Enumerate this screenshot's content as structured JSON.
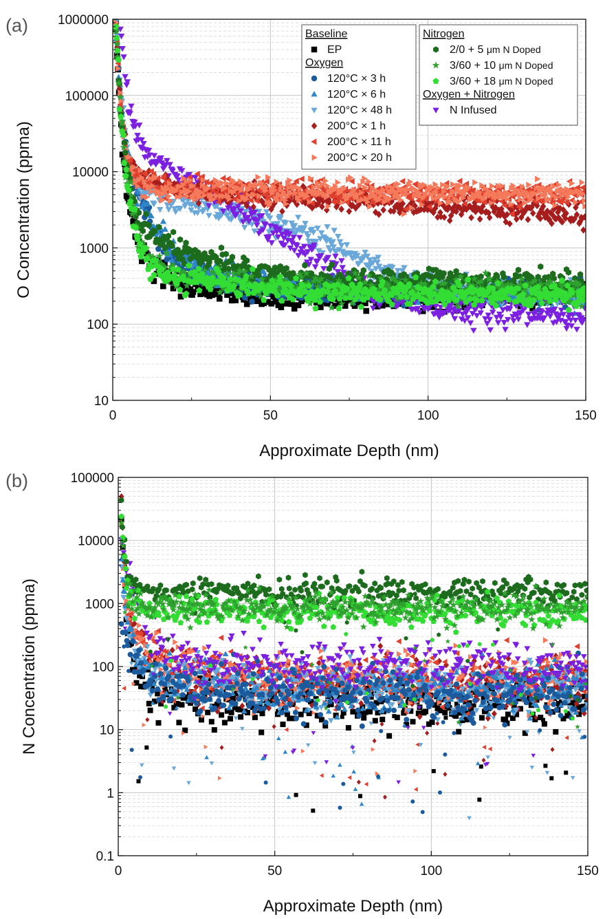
{
  "chart_data": [
    {
      "type": "scatter",
      "panel_label": "(a)",
      "title": "",
      "xlabel": "Approximate Depth (nm)",
      "ylabel": "O Concentration (ppma)",
      "xlim": [
        0,
        150
      ],
      "ylim": [
        10,
        1000000
      ],
      "yscale": "log",
      "x_ticks": [
        "0",
        "50",
        "100",
        "150"
      ],
      "y_ticks": [
        "10",
        "100",
        "1000",
        "10000",
        "100000",
        "1000000"
      ],
      "grid": true,
      "legend_placement": "top-right",
      "legend_groups": [
        {
          "heading": "Baseline",
          "entries": [
            {
              "label": "EP",
              "series": "ep"
            }
          ]
        },
        {
          "heading": "Oxygen",
          "entries": [
            {
              "label": "120°C × 3 h",
              "series": "o120_3"
            },
            {
              "label": "120°C × 6 h",
              "series": "o120_6"
            },
            {
              "label": "120°C × 48 h",
              "series": "o120_48"
            },
            {
              "label": "200°C × 1 h",
              "series": "o200_1"
            },
            {
              "label": "200°C × 11 h",
              "series": "o200_11"
            },
            {
              "label": "200°C × 20 h",
              "series": "o200_20"
            }
          ]
        },
        {
          "heading": "Nitrogen",
          "entries": [
            {
              "label": "2/0 + 5 μm N Doped",
              "series": "n2_0_5",
              "label_parts": [
                "2/0 + 5 ",
                "μm N Doped"
              ]
            },
            {
              "label": "3/60 + 10 μm N Doped",
              "series": "n3_60_10",
              "label_parts": [
                "3/60 + 10 ",
                "μm N Doped"
              ]
            },
            {
              "label": "3/60 + 18 μm N Doped",
              "series": "n3_60_18",
              "label_parts": [
                "3/60 + 18 ",
                "μm N Doped"
              ]
            }
          ]
        },
        {
          "heading": "Oxygen + Nitrogen",
          "entries": [
            {
              "label": "N Infused",
              "series": "ninf"
            }
          ]
        }
      ],
      "series": [
        {
          "key": "ep",
          "name": "EP",
          "marker": "square",
          "color": "#000000",
          "x": [
            1,
            2,
            3,
            5,
            8,
            12,
            18,
            25,
            35,
            50,
            70,
            90,
            110,
            130,
            150
          ],
          "y": [
            800000,
            100000,
            20000,
            4000,
            1200,
            600,
            400,
            300,
            260,
            230,
            220,
            220,
            230,
            240,
            250
          ]
        },
        {
          "key": "o120_3",
          "name": "120°C × 3 h",
          "marker": "circle",
          "color": "#1b5a9c",
          "x": [
            1,
            2,
            3,
            5,
            8,
            10,
            14,
            18,
            25,
            35,
            50,
            70,
            90,
            110,
            130,
            150
          ],
          "y": [
            900000,
            150000,
            40000,
            12000,
            5000,
            3500,
            1500,
            800,
            500,
            400,
            320,
            280,
            270,
            260,
            250,
            250
          ]
        },
        {
          "key": "o120_6",
          "name": "120°C × 6 h",
          "marker": "triangle-up",
          "color": "#2e86c9",
          "x": [
            1,
            2,
            3,
            5,
            8,
            10,
            14,
            18,
            25,
            35,
            50,
            70,
            90,
            110,
            130,
            150
          ],
          "y": [
            900000,
            160000,
            45000,
            13000,
            5500,
            4000,
            2000,
            1000,
            600,
            420,
            330,
            290,
            270,
            260,
            250,
            250
          ]
        },
        {
          "key": "o120_48",
          "name": "120°C × 48 h",
          "marker": "triangle-down",
          "color": "#6aa8da",
          "x": [
            1,
            2,
            3,
            5,
            8,
            12,
            20,
            30,
            40,
            50,
            60,
            70,
            80,
            90,
            100,
            110,
            130,
            150
          ],
          "y": [
            900000,
            200000,
            60000,
            15000,
            7000,
            5000,
            4200,
            3500,
            2800,
            2200,
            1600,
            1100,
            650,
            430,
            330,
            290,
            260,
            250
          ]
        },
        {
          "key": "o200_1",
          "name": "200°C × 1 h",
          "marker": "diamond",
          "color": "#a51d1d",
          "x": [
            1,
            2,
            3,
            5,
            8,
            15,
            30,
            50,
            70,
            90,
            110,
            130,
            150
          ],
          "y": [
            900000,
            150000,
            40000,
            12000,
            8500,
            6500,
            5500,
            4800,
            4200,
            3800,
            3400,
            3000,
            2600
          ]
        },
        {
          "key": "o200_11",
          "name": "200°C × 11 h",
          "marker": "triangle-left",
          "color": "#e0402e",
          "x": [
            1,
            2,
            3,
            5,
            8,
            15,
            30,
            50,
            70,
            90,
            110,
            130,
            150
          ],
          "y": [
            900000,
            150000,
            40000,
            12000,
            8000,
            6500,
            5800,
            5500,
            5300,
            5200,
            5200,
            5200,
            5100
          ]
        },
        {
          "key": "o200_20",
          "name": "200°C × 20 h",
          "marker": "triangle-right",
          "color": "#f47a5b",
          "x": [
            1,
            2,
            3,
            5,
            8,
            15,
            30,
            50,
            70,
            90,
            110,
            130,
            150
          ],
          "y": [
            900000,
            150000,
            40000,
            12000,
            7000,
            6000,
            5800,
            5600,
            5500,
            5400,
            5300,
            5200,
            5000
          ]
        },
        {
          "key": "n2_0_5",
          "name": "2/0 + 5 μm N Doped",
          "marker": "hexagon",
          "color": "#1d6b1d",
          "x": [
            1,
            2,
            3,
            5,
            8,
            12,
            20,
            30,
            45,
            60,
            80,
            100,
            120,
            150
          ],
          "y": [
            900000,
            150000,
            40000,
            8000,
            2500,
            1500,
            1000,
            700,
            500,
            420,
            380,
            370,
            350,
            330
          ]
        },
        {
          "key": "n3_60_10",
          "name": "3/60 + 10 μm N Doped",
          "marker": "star",
          "color": "#2ea12e",
          "x": [
            1,
            2,
            3,
            5,
            8,
            12,
            20,
            30,
            45,
            60,
            80,
            100,
            120,
            150
          ],
          "y": [
            800000,
            120000,
            30000,
            6000,
            1500,
            700,
            450,
            380,
            330,
            300,
            290,
            280,
            275,
            270
          ]
        },
        {
          "key": "n3_60_18",
          "name": "3/60 + 18 μm N Doped",
          "marker": "pentagon",
          "color": "#33dd33",
          "x": [
            1,
            2,
            3,
            5,
            8,
            12,
            20,
            30,
            45,
            60,
            80,
            100,
            120,
            150
          ],
          "y": [
            800000,
            120000,
            30000,
            5000,
            1200,
            600,
            420,
            350,
            300,
            270,
            260,
            250,
            240,
            240
          ]
        },
        {
          "key": "ninf",
          "name": "N Infused",
          "marker": "triangle-down",
          "color": "#7b1fe0",
          "x": [
            2,
            3,
            5,
            8,
            12,
            18,
            25,
            30,
            40,
            50,
            60,
            70,
            80,
            90,
            100,
            110,
            120,
            130,
            140,
            150
          ],
          "y": [
            1000000,
            500000,
            80000,
            28000,
            15000,
            11000,
            7500,
            5500,
            3200,
            1800,
            1000,
            500,
            300,
            220,
            170,
            150,
            140,
            140,
            130,
            120
          ]
        }
      ]
    },
    {
      "type": "scatter",
      "panel_label": "(b)",
      "title": "",
      "xlabel": "Approximate Depth (nm)",
      "ylabel": "N Concentration (ppma)",
      "xlim": [
        0,
        150
      ],
      "ylim": [
        0.1,
        100000
      ],
      "yscale": "log",
      "x_ticks": [
        "0",
        "50",
        "100",
        "150"
      ],
      "y_ticks": [
        "0.1",
        "1",
        "10",
        "100",
        "1000",
        "10000",
        "100000"
      ],
      "grid": true,
      "series": [
        {
          "key": "ep",
          "name": "EP",
          "marker": "square",
          "color": "#000000",
          "x": [
            1,
            2,
            3,
            5,
            8,
            12,
            20,
            40,
            70,
            100,
            130,
            150
          ],
          "y": [
            20000,
            2000,
            300,
            100,
            50,
            40,
            30,
            28,
            27,
            27,
            26,
            26
          ]
        },
        {
          "key": "o120_3",
          "name": "120°C × 3 h",
          "marker": "circle",
          "color": "#1b5a9c",
          "x": [
            1,
            2,
            3,
            5,
            8,
            12,
            20,
            40,
            70,
            100,
            130,
            150
          ],
          "y": [
            500,
            350,
            250,
            150,
            80,
            60,
            45,
            40,
            38,
            36,
            35,
            35
          ]
        },
        {
          "key": "o120_6",
          "name": "120°C × 6 h",
          "marker": "triangle-up",
          "color": "#2e86c9",
          "x": [
            1,
            2,
            3,
            5,
            8,
            12,
            20,
            40,
            70,
            100,
            130,
            150
          ],
          "y": [
            5000,
            1500,
            500,
            200,
            100,
            70,
            55,
            45,
            42,
            40,
            40,
            40
          ]
        },
        {
          "key": "o120_48",
          "name": "120°C × 48 h",
          "marker": "triangle-down",
          "color": "#6aa8da",
          "x": [
            1,
            2,
            3,
            5,
            8,
            12,
            20,
            40,
            70,
            100,
            130,
            150
          ],
          "y": [
            3000,
            1000,
            400,
            180,
            90,
            70,
            60,
            50,
            45,
            45,
            45,
            45
          ]
        },
        {
          "key": "o200_1",
          "name": "200°C × 1 h",
          "marker": "diamond",
          "color": "#a51d1d",
          "x": [
            1,
            2,
            3,
            5,
            8,
            12,
            20,
            40,
            70,
            100,
            130,
            150
          ],
          "y": [
            30000,
            3000,
            800,
            400,
            200,
            120,
            70,
            55,
            50,
            50,
            50,
            50
          ]
        },
        {
          "key": "o200_11",
          "name": "200°C × 11 h",
          "marker": "triangle-left",
          "color": "#e0402e",
          "x": [
            1,
            2,
            3,
            5,
            8,
            12,
            20,
            40,
            70,
            100,
            130,
            150
          ],
          "y": [
            20000,
            2000,
            700,
            400,
            250,
            150,
            90,
            70,
            65,
            60,
            60,
            60
          ]
        },
        {
          "key": "o200_20",
          "name": "200°C × 20 h",
          "marker": "triangle-right",
          "color": "#f47a5b",
          "x": [
            1,
            2,
            3,
            5,
            8,
            12,
            20,
            40,
            70,
            100,
            130,
            150
          ],
          "y": [
            20000,
            2000,
            700,
            350,
            220,
            140,
            90,
            70,
            65,
            60,
            60,
            60
          ]
        },
        {
          "key": "n2_0_5",
          "name": "2/0 + 5 μm N Doped",
          "marker": "hexagon",
          "color": "#1d6b1d",
          "x": [
            1,
            2,
            3,
            5,
            8,
            12,
            20,
            40,
            70,
            100,
            130,
            150
          ],
          "y": [
            50000,
            8000,
            3000,
            1800,
            1500,
            1500,
            1500,
            1550,
            1550,
            1500,
            1500,
            1450
          ]
        },
        {
          "key": "n3_60_10",
          "name": "3/60 + 10 μm N Doped",
          "marker": "star",
          "color": "#2ea12e",
          "x": [
            1,
            2,
            3,
            5,
            8,
            12,
            20,
            40,
            70,
            100,
            130,
            150
          ],
          "y": [
            20000,
            5000,
            1500,
            1000,
            900,
            900,
            850,
            850,
            850,
            850,
            800,
            800
          ]
        },
        {
          "key": "n3_60_18",
          "name": "3/60 + 18 μm N Doped",
          "marker": "pentagon",
          "color": "#33dd33",
          "x": [
            1,
            2,
            3,
            5,
            8,
            12,
            20,
            40,
            70,
            100,
            130,
            150
          ],
          "y": [
            20000,
            5000,
            1500,
            950,
            850,
            800,
            750,
            750,
            750,
            750,
            700,
            700
          ]
        },
        {
          "key": "ninf",
          "name": "N Infused",
          "marker": "triangle-down",
          "color": "#7b1fe0",
          "x": [
            1,
            2,
            3,
            5,
            8,
            12,
            20,
            40,
            70,
            100,
            130,
            150
          ],
          "y": [
            10000,
            5000,
            3000,
            1500,
            700,
            250,
            130,
            110,
            110,
            110,
            105,
            100
          ]
        }
      ]
    }
  ]
}
